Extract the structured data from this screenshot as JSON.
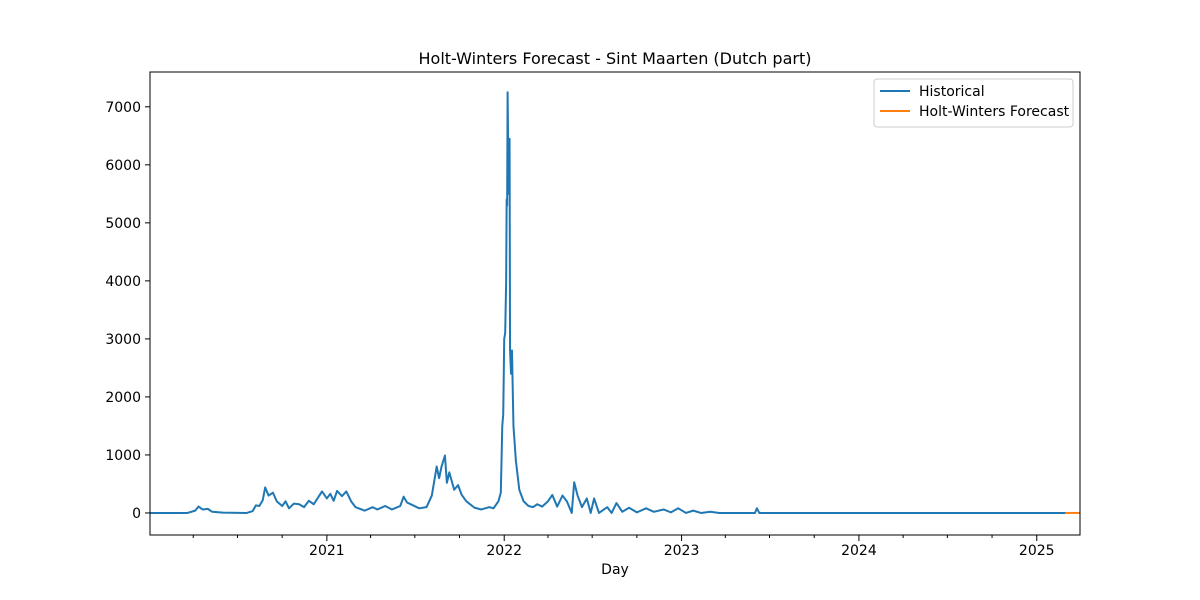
{
  "chart_data": {
    "type": "line",
    "title": "Holt-Winters Forecast - Sint Maarten (Dutch part)",
    "xlabel": "Day",
    "ylabel": "",
    "x_range": [
      "2020-01-03",
      "2025-03-31"
    ],
    "ylim": [
      -380,
      7600
    ],
    "y_ticks": [
      0,
      1000,
      2000,
      3000,
      4000,
      5000,
      6000,
      7000
    ],
    "x_ticks": [
      {
        "date": "2021-01-01",
        "label": "2021"
      },
      {
        "date": "2022-01-01",
        "label": "2022"
      },
      {
        "date": "2023-01-01",
        "label": "2023"
      },
      {
        "date": "2024-01-01",
        "label": "2024"
      },
      {
        "date": "2025-01-01",
        "label": "2025"
      }
    ],
    "grid": false,
    "legend_position": "top-right",
    "series": [
      {
        "name": "Historical",
        "color": "#1f77b4",
        "points": [
          [
            "2020-01-03",
            0
          ],
          [
            "2020-03-20",
            0
          ],
          [
            "2020-04-05",
            40
          ],
          [
            "2020-04-12",
            110
          ],
          [
            "2020-04-20",
            60
          ],
          [
            "2020-05-01",
            70
          ],
          [
            "2020-05-10",
            20
          ],
          [
            "2020-06-01",
            5
          ],
          [
            "2020-07-20",
            0
          ],
          [
            "2020-08-01",
            30
          ],
          [
            "2020-08-08",
            130
          ],
          [
            "2020-08-15",
            120
          ],
          [
            "2020-08-22",
            220
          ],
          [
            "2020-08-27",
            440
          ],
          [
            "2020-09-03",
            300
          ],
          [
            "2020-09-12",
            350
          ],
          [
            "2020-09-20",
            200
          ],
          [
            "2020-10-01",
            120
          ],
          [
            "2020-10-08",
            200
          ],
          [
            "2020-10-15",
            80
          ],
          [
            "2020-10-25",
            160
          ],
          [
            "2020-11-05",
            150
          ],
          [
            "2020-11-15",
            100
          ],
          [
            "2020-11-25",
            210
          ],
          [
            "2020-12-05",
            150
          ],
          [
            "2020-12-15",
            280
          ],
          [
            "2020-12-22",
            370
          ],
          [
            "2021-01-01",
            250
          ],
          [
            "2021-01-08",
            330
          ],
          [
            "2021-01-15",
            210
          ],
          [
            "2021-01-22",
            380
          ],
          [
            "2021-02-01",
            290
          ],
          [
            "2021-02-10",
            370
          ],
          [
            "2021-02-20",
            200
          ],
          [
            "2021-03-01",
            100
          ],
          [
            "2021-03-20",
            40
          ],
          [
            "2021-04-05",
            100
          ],
          [
            "2021-04-15",
            60
          ],
          [
            "2021-05-01",
            120
          ],
          [
            "2021-05-15",
            60
          ],
          [
            "2021-06-01",
            120
          ],
          [
            "2021-06-08",
            280
          ],
          [
            "2021-06-15",
            180
          ],
          [
            "2021-06-25",
            140
          ],
          [
            "2021-07-10",
            80
          ],
          [
            "2021-07-25",
            100
          ],
          [
            "2021-08-05",
            300
          ],
          [
            "2021-08-15",
            800
          ],
          [
            "2021-08-20",
            600
          ],
          [
            "2021-08-25",
            800
          ],
          [
            "2021-09-01",
            990
          ],
          [
            "2021-09-05",
            520
          ],
          [
            "2021-09-10",
            700
          ],
          [
            "2021-09-20",
            400
          ],
          [
            "2021-09-28",
            480
          ],
          [
            "2021-10-05",
            320
          ],
          [
            "2021-10-15",
            200
          ],
          [
            "2021-11-01",
            90
          ],
          [
            "2021-11-15",
            60
          ],
          [
            "2021-12-01",
            100
          ],
          [
            "2021-12-10",
            80
          ],
          [
            "2021-12-20",
            200
          ],
          [
            "2021-12-25",
            350
          ],
          [
            "2021-12-28",
            1500
          ],
          [
            "2021-12-30",
            1700
          ],
          [
            "2022-01-01",
            3000
          ],
          [
            "2022-01-03",
            3100
          ],
          [
            "2022-01-05",
            4000
          ],
          [
            "2022-01-06",
            5400
          ],
          [
            "2022-01-07",
            5300
          ],
          [
            "2022-01-08",
            7250
          ],
          [
            "2022-01-10",
            5500
          ],
          [
            "2022-01-12",
            6450
          ],
          [
            "2022-01-13",
            2800
          ],
          [
            "2022-01-15",
            2400
          ],
          [
            "2022-01-17",
            2800
          ],
          [
            "2022-01-20",
            1500
          ],
          [
            "2022-01-25",
            900
          ],
          [
            "2022-02-01",
            400
          ],
          [
            "2022-02-10",
            200
          ],
          [
            "2022-02-20",
            120
          ],
          [
            "2022-03-01",
            100
          ],
          [
            "2022-03-10",
            150
          ],
          [
            "2022-03-20",
            110
          ],
          [
            "2022-04-01",
            200
          ],
          [
            "2022-04-10",
            310
          ],
          [
            "2022-04-20",
            110
          ],
          [
            "2022-05-01",
            300
          ],
          [
            "2022-05-10",
            200
          ],
          [
            "2022-05-20",
            0
          ],
          [
            "2022-05-25",
            530
          ],
          [
            "2022-06-01",
            300
          ],
          [
            "2022-06-10",
            100
          ],
          [
            "2022-06-20",
            250
          ],
          [
            "2022-06-28",
            0
          ],
          [
            "2022-07-05",
            250
          ],
          [
            "2022-07-15",
            0
          ],
          [
            "2022-08-01",
            100
          ],
          [
            "2022-08-10",
            0
          ],
          [
            "2022-08-20",
            170
          ],
          [
            "2022-09-01",
            20
          ],
          [
            "2022-09-15",
            90
          ],
          [
            "2022-10-01",
            10
          ],
          [
            "2022-10-20",
            80
          ],
          [
            "2022-11-05",
            20
          ],
          [
            "2022-11-25",
            60
          ],
          [
            "2022-12-10",
            10
          ],
          [
            "2022-12-25",
            80
          ],
          [
            "2023-01-10",
            0
          ],
          [
            "2023-01-25",
            40
          ],
          [
            "2023-02-10",
            0
          ],
          [
            "2023-03-01",
            20
          ],
          [
            "2023-03-20",
            0
          ],
          [
            "2023-06-01",
            0
          ],
          [
            "2023-06-05",
            80
          ],
          [
            "2023-06-10",
            0
          ],
          [
            "2025-03-01",
            0
          ]
        ]
      },
      {
        "name": "Holt-Winters Forecast",
        "color": "#ff7f0e",
        "points": [
          [
            "2025-03-01",
            0
          ],
          [
            "2025-03-31",
            0
          ]
        ]
      }
    ]
  }
}
